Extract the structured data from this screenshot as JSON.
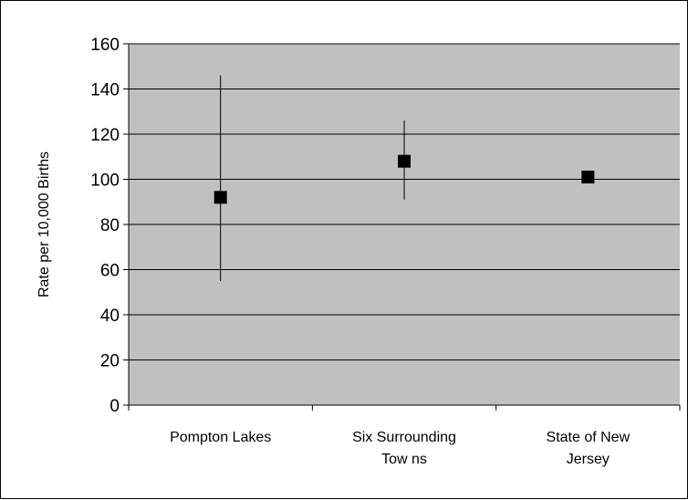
{
  "chart_data": {
    "type": "scatter",
    "categories": [
      "Pompton Lakes",
      "Six Surrounding Tow ns",
      "State of New Jersey"
    ],
    "category_lines": [
      [
        "Pompton Lakes"
      ],
      [
        "Six Surrounding",
        "Tow ns"
      ],
      [
        "State of New",
        "Jersey"
      ]
    ],
    "values": [
      92,
      108,
      101
    ],
    "error_low": [
      55,
      91,
      null
    ],
    "error_high": [
      146,
      126,
      null
    ],
    "ylabel": "Rate per 10,000 Births",
    "ylim": [
      0,
      160
    ],
    "yticks": [
      0,
      20,
      40,
      60,
      80,
      100,
      120,
      140,
      160
    ],
    "grid": true,
    "legend": "none",
    "colors": {
      "plot_bg": "#c0c0c0",
      "marker": "#000000",
      "grid": "#000000"
    }
  }
}
